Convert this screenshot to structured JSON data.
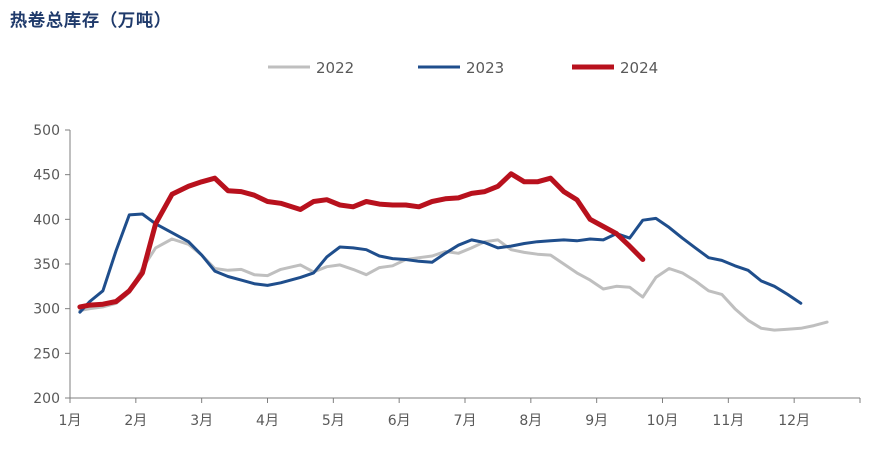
{
  "title": "热卷总库存（万吨）",
  "chart_data": {
    "type": "line",
    "title": "热卷总库存（万吨）",
    "xlabel": "",
    "ylabel": "",
    "ylim": [
      200,
      500
    ],
    "yticks": [
      200,
      250,
      300,
      350,
      400,
      450,
      500
    ],
    "xlim": [
      1,
      13
    ],
    "month_labels": [
      "1月",
      "2月",
      "3月",
      "4月",
      "5月",
      "6月",
      "7月",
      "8月",
      "9月",
      "10月",
      "11月",
      "12月"
    ],
    "legend_position": "top",
    "grid": false,
    "series": [
      {
        "name": "2022",
        "color": "#bfbfbf",
        "width": 3,
        "x": [
          1.15,
          1.3,
          1.5,
          1.7,
          1.9,
          2.1,
          2.3,
          2.55,
          2.8,
          3.0,
          3.2,
          3.4,
          3.6,
          3.8,
          4.0,
          4.2,
          4.5,
          4.7,
          4.9,
          5.1,
          5.3,
          5.5,
          5.7,
          5.9,
          6.1,
          6.3,
          6.5,
          6.7,
          6.9,
          7.1,
          7.3,
          7.5,
          7.7,
          7.9,
          8.1,
          8.3,
          8.5,
          8.7,
          8.9,
          9.1,
          9.3,
          9.5,
          9.7,
          9.9,
          10.1,
          10.3,
          10.5,
          10.7,
          10.9,
          11.1,
          11.3,
          11.5,
          11.7,
          11.9,
          12.1,
          12.3,
          12.5,
          12.7,
          12.9
        ],
        "values": [
          298,
          300,
          302,
          306,
          318,
          345,
          368,
          378,
          372,
          360,
          345,
          343,
          344,
          338,
          337,
          344,
          349,
          341,
          347,
          349,
          344,
          338,
          346,
          348,
          355,
          357,
          359,
          364,
          362,
          368,
          375,
          377,
          366,
          363,
          361,
          360,
          350,
          340,
          332,
          322,
          325,
          324,
          313,
          335,
          345,
          340,
          331,
          320,
          316,
          300,
          287,
          278,
          276,
          277,
          278,
          281,
          285,
          null,
          null
        ]
      },
      {
        "name": "2023",
        "color": "#1f4e8c",
        "width": 3,
        "x": [
          1.15,
          1.3,
          1.5,
          1.7,
          1.9,
          2.1,
          2.3,
          2.55,
          2.8,
          3.0,
          3.2,
          3.4,
          3.6,
          3.8,
          4.0,
          4.2,
          4.5,
          4.7,
          4.9,
          5.1,
          5.3,
          5.5,
          5.7,
          5.9,
          6.1,
          6.3,
          6.5,
          6.7,
          6.9,
          7.1,
          7.3,
          7.5,
          7.7,
          7.9,
          8.1,
          8.3,
          8.5,
          8.7,
          8.9,
          9.1,
          9.3,
          9.5,
          9.7,
          9.9,
          10.1,
          10.3,
          10.5,
          10.7,
          10.9,
          11.1,
          11.3,
          11.5,
          11.7,
          11.9,
          12.1,
          12.3
        ],
        "values": [
          296,
          308,
          320,
          365,
          405,
          406,
          395,
          385,
          375,
          360,
          342,
          336,
          332,
          328,
          326,
          329,
          335,
          340,
          358,
          369,
          368,
          366,
          359,
          356,
          355,
          353,
          352,
          362,
          371,
          377,
          374,
          368,
          370,
          373,
          375,
          376,
          377,
          376,
          378,
          377,
          384,
          379,
          399,
          401,
          391,
          379,
          368,
          357,
          354,
          348,
          343,
          331,
          325,
          316,
          306,
          null
        ]
      },
      {
        "name": "2024",
        "color": "#b8111d",
        "width": 5,
        "x": [
          1.15,
          1.3,
          1.5,
          1.7,
          1.9,
          2.1,
          2.3,
          2.55,
          2.8,
          3.0,
          3.2,
          3.4,
          3.6,
          3.8,
          4.0,
          4.2,
          4.5,
          4.7,
          4.9,
          5.1,
          5.3,
          5.5,
          5.7,
          5.9,
          6.1,
          6.3,
          6.5,
          6.7,
          6.9,
          7.1,
          7.3,
          7.5,
          7.7,
          7.9,
          8.1,
          8.3,
          8.5,
          8.7,
          8.9,
          9.1,
          9.3,
          9.5,
          9.7,
          9.9,
          10.1,
          10.3,
          10.5,
          10.7
        ],
        "values": [
          302,
          304,
          305,
          308,
          320,
          340,
          395,
          428,
          437,
          442,
          446,
          432,
          431,
          427,
          420,
          418,
          411,
          420,
          422,
          416,
          414,
          420,
          417,
          416,
          416,
          414,
          420,
          423,
          424,
          429,
          431,
          437,
          451,
          442,
          442,
          446,
          431,
          422,
          400,
          392,
          384,
          370,
          355,
          null,
          null,
          null,
          null,
          null
        ]
      }
    ]
  }
}
